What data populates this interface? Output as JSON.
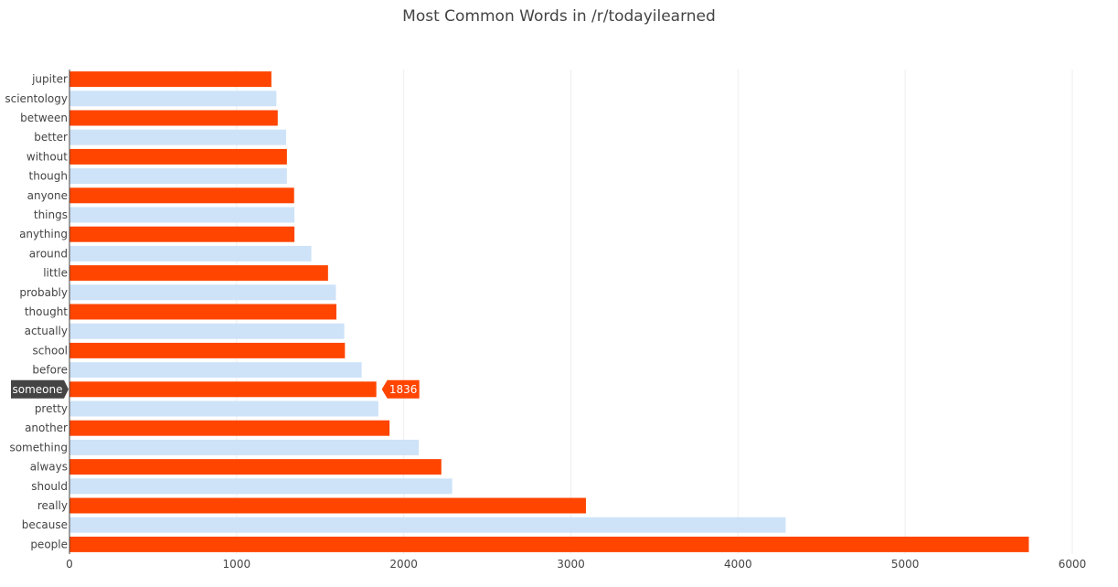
{
  "chart_data": {
    "type": "bar",
    "orientation": "horizontal",
    "title": "Most Common Words in /r/todayilearned",
    "xlabel": "",
    "ylabel": "",
    "xlim": [
      0,
      6000
    ],
    "xticks": [
      0,
      1000,
      2000,
      3000,
      4000,
      5000,
      6000
    ],
    "grid": true,
    "legend": "none",
    "categories": [
      "people",
      "because",
      "really",
      "should",
      "always",
      "something",
      "another",
      "pretty",
      "someone",
      "before",
      "school",
      "actually",
      "thought",
      "probably",
      "little",
      "around",
      "anything",
      "things",
      "anyone",
      "though",
      "without",
      "better",
      "between",
      "scientology",
      "jupiter"
    ],
    "values": [
      5740,
      4285,
      3090,
      2290,
      2225,
      2090,
      1915,
      1848,
      1836,
      1748,
      1648,
      1644,
      1597,
      1594,
      1547,
      1447,
      1346,
      1346,
      1344,
      1301,
      1301,
      1296,
      1246,
      1238,
      1208
    ],
    "colors": {
      "primary": "#ff4500",
      "secondary": "#cee3f8"
    },
    "hover": {
      "category": "someone",
      "value": "1836"
    }
  }
}
